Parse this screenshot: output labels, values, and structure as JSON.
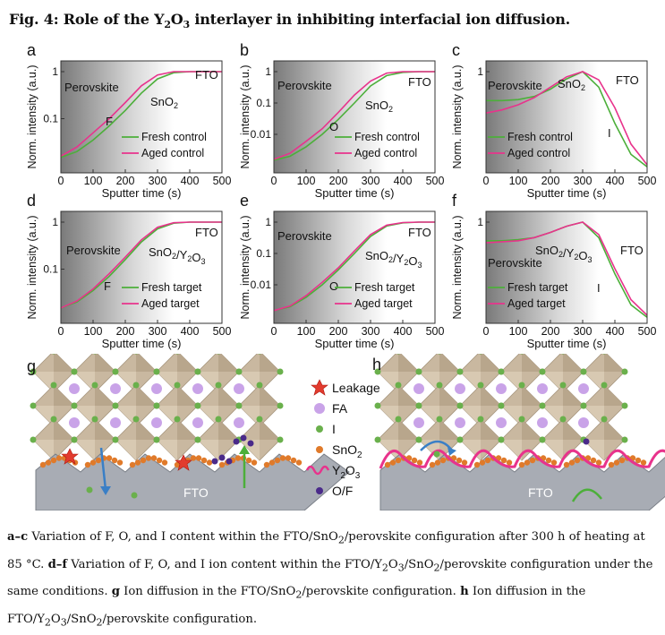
{
  "figure": {
    "title_prefix": "Fig. 4:",
    "title_text_pre": "Role of the Y",
    "title_sub1": "2",
    "title_mid": "O",
    "title_sub2": "3",
    "title_text_post": " interlayer in inhibiting interfacial ion diffusion."
  },
  "colors": {
    "green": "#4caf3a",
    "pink": "#e8338c",
    "gray_dark": "#8a8a8a",
    "fto": "#a8acb4",
    "sno2": "#e07a2a",
    "i_ion": "#6ab04c",
    "fa": "#c9a3e8",
    "of": "#4a2a8a",
    "octa": "#c9b8a0"
  },
  "chart_data": [
    {
      "panel": "a",
      "type": "line",
      "y_scale": "log",
      "ylim": [
        0.01,
        1
      ],
      "xlim": [
        0,
        500
      ],
      "xlabel": "Sputter time (s)",
      "ylabel": "Norm. intensity (a.u.)",
      "yticks": [
        "1",
        "0.1"
      ],
      "xticks": [
        "0",
        "100",
        "200",
        "300",
        "400",
        "500"
      ],
      "regions": [
        "Perovskite",
        "SnO2",
        "FTO"
      ],
      "ion": "F",
      "series": [
        {
          "name": "Fresh control",
          "x": [
            0,
            50,
            100,
            150,
            200,
            250,
            300,
            350,
            400,
            450,
            500
          ],
          "values": [
            0.015,
            0.02,
            0.035,
            0.07,
            0.15,
            0.35,
            0.7,
            0.95,
            1,
            1,
            1
          ]
        },
        {
          "name": "Aged control",
          "x": [
            0,
            50,
            100,
            150,
            200,
            250,
            300,
            350,
            400,
            450,
            500
          ],
          "values": [
            0.016,
            0.025,
            0.05,
            0.1,
            0.22,
            0.5,
            0.85,
            1,
            1,
            1,
            1
          ]
        }
      ]
    },
    {
      "panel": "b",
      "type": "line",
      "y_scale": "log",
      "ylim": [
        0.001,
        1
      ],
      "xlim": [
        0,
        500
      ],
      "xlabel": "Sputter time (s)",
      "ylabel": "Norm. intensity (a.u.)",
      "yticks": [
        "1",
        "0.1",
        "0.01"
      ],
      "xticks": [
        "0",
        "100",
        "200",
        "300",
        "400",
        "500"
      ],
      "regions": [
        "Perovskite",
        "SnO2",
        "FTO"
      ],
      "ion": "O",
      "series": [
        {
          "name": "Fresh control",
          "x": [
            0,
            50,
            100,
            150,
            200,
            250,
            300,
            350,
            400,
            450,
            500
          ],
          "values": [
            0.0015,
            0.002,
            0.004,
            0.01,
            0.03,
            0.1,
            0.35,
            0.75,
            0.95,
            1,
            1
          ]
        },
        {
          "name": "Aged control",
          "x": [
            0,
            50,
            100,
            150,
            200,
            250,
            300,
            350,
            400,
            450,
            500
          ],
          "values": [
            0.0016,
            0.0025,
            0.006,
            0.015,
            0.05,
            0.18,
            0.5,
            0.9,
            1,
            1,
            1
          ]
        }
      ]
    },
    {
      "panel": "c",
      "type": "line",
      "y_scale": "linear",
      "xlim": [
        0,
        500
      ],
      "xlabel": "Sputter time (s)",
      "ylabel": "Norm. intensity (a.u.)",
      "yticks": [
        "1"
      ],
      "xticks": [
        "0",
        "100",
        "200",
        "300",
        "400",
        "500"
      ],
      "regions": [
        "Perovskite",
        "SnO2",
        "FTO"
      ],
      "ion": "I",
      "series": [
        {
          "name": "Fresh control",
          "x": [
            0,
            50,
            100,
            150,
            200,
            250,
            300,
            350,
            400,
            450,
            500
          ],
          "values": [
            0.72,
            0.72,
            0.73,
            0.76,
            0.83,
            0.93,
            1,
            0.85,
            0.5,
            0.2,
            0.08
          ]
        },
        {
          "name": "Aged control",
          "x": [
            0,
            50,
            100,
            150,
            200,
            250,
            300,
            350,
            400,
            450,
            500
          ],
          "values": [
            0.6,
            0.63,
            0.68,
            0.75,
            0.85,
            0.95,
            1,
            0.92,
            0.65,
            0.3,
            0.1
          ]
        }
      ]
    },
    {
      "panel": "d",
      "type": "line",
      "y_scale": "log",
      "ylim": [
        0.01,
        1
      ],
      "xlim": [
        0,
        500
      ],
      "xlabel": "Sputter time (s)",
      "ylabel": "Norm. intensity (a.u.)",
      "yticks": [
        "1",
        "0.1"
      ],
      "xticks": [
        "0",
        "100",
        "200",
        "300",
        "400",
        "500"
      ],
      "regions": [
        "Perovskite",
        "SnO2/Y2O3",
        "FTO"
      ],
      "ion": "F",
      "series": [
        {
          "name": "Fresh target",
          "x": [
            0,
            50,
            100,
            150,
            200,
            250,
            300,
            350,
            400,
            450,
            500
          ],
          "values": [
            0.015,
            0.02,
            0.035,
            0.07,
            0.16,
            0.38,
            0.72,
            0.95,
            1,
            1,
            1
          ]
        },
        {
          "name": "Aged target",
          "x": [
            0,
            50,
            100,
            150,
            200,
            250,
            300,
            350,
            400,
            450,
            500
          ],
          "values": [
            0.015,
            0.021,
            0.038,
            0.08,
            0.18,
            0.42,
            0.78,
            0.97,
            1,
            1,
            1
          ]
        }
      ]
    },
    {
      "panel": "e",
      "type": "line",
      "y_scale": "log",
      "ylim": [
        0.001,
        1
      ],
      "xlim": [
        0,
        500
      ],
      "xlabel": "Sputter time (s)",
      "ylabel": "Norm. intensity (a.u.)",
      "yticks": [
        "1",
        "0.1",
        "0.01"
      ],
      "xticks": [
        "0",
        "100",
        "200",
        "300",
        "400",
        "500"
      ],
      "regions": [
        "Perovskite",
        "SnO2/Y2O3",
        "FTO"
      ],
      "ion": "O",
      "series": [
        {
          "name": "Fresh target",
          "x": [
            0,
            50,
            100,
            150,
            200,
            250,
            300,
            350,
            400,
            450,
            500
          ],
          "values": [
            0.0015,
            0.002,
            0.004,
            0.01,
            0.03,
            0.1,
            0.35,
            0.75,
            0.95,
            1,
            1
          ]
        },
        {
          "name": "Aged target",
          "x": [
            0,
            50,
            100,
            150,
            200,
            250,
            300,
            350,
            400,
            450,
            500
          ],
          "values": [
            0.0015,
            0.0021,
            0.0045,
            0.012,
            0.035,
            0.12,
            0.4,
            0.8,
            0.97,
            1,
            1
          ]
        }
      ]
    },
    {
      "panel": "f",
      "type": "line",
      "y_scale": "linear",
      "xlim": [
        0,
        500
      ],
      "xlabel": "Sputter time (s)",
      "ylabel": "Norm. intensity (a.u.)",
      "yticks": [
        "1"
      ],
      "xticks": [
        "0",
        "100",
        "200",
        "300",
        "400",
        "500"
      ],
      "regions": [
        "Perovskite",
        "SnO2/Y2O3",
        "FTO"
      ],
      "ion": "I",
      "series": [
        {
          "name": "Fresh target",
          "x": [
            0,
            50,
            100,
            150,
            200,
            250,
            300,
            350,
            400,
            450,
            500
          ],
          "values": [
            0.82,
            0.82,
            0.83,
            0.85,
            0.9,
            0.96,
            1,
            0.85,
            0.5,
            0.2,
            0.08
          ]
        },
        {
          "name": "Aged target",
          "x": [
            0,
            50,
            100,
            150,
            200,
            250,
            300,
            350,
            400,
            450,
            500
          ],
          "values": [
            0.8,
            0.81,
            0.82,
            0.85,
            0.9,
            0.96,
            1,
            0.88,
            0.55,
            0.25,
            0.1
          ]
        }
      ]
    }
  ],
  "schematic": {
    "label_g": "g",
    "label_h": "h",
    "fto_label": "FTO",
    "legend": [
      {
        "key": "leakage",
        "label": "Leakage"
      },
      {
        "key": "fa",
        "label": "FA"
      },
      {
        "key": "i",
        "label": "I"
      },
      {
        "key": "sno2",
        "label_pre": "SnO",
        "label_sub": "2"
      },
      {
        "key": "y2o3",
        "label_pre": "Y",
        "label_sub": "2",
        "label_mid": "O",
        "label_sub2": "3"
      },
      {
        "key": "of",
        "label": "O/F"
      }
    ]
  },
  "caption": {
    "p1_bold": "a–c",
    "p1_text": " Variation of F, O, and I content within the FTO/SnO",
    "p1_sub": "2",
    "p1_text2": "/perovskite configuration after 300 h of heating at 85 °C. ",
    "p2_bold": "d–f",
    "p2_text": " Variation of F, O, and I ion content within the FTO/Y",
    "p2_sub1": "2",
    "p2_mid": "O",
    "p2_sub2": "3",
    "p2_mid2": "/SnO",
    "p2_sub3": "2",
    "p2_text2": "/perovskite configuration under the same conditions. ",
    "p3_bold": "g",
    "p3_text": " Ion diffusion in the FTO/SnO",
    "p3_sub": "2",
    "p3_text2": "/perovskite configuration. ",
    "p4_bold": "h",
    "p4_text": " Ion diffusion in the FTO/Y",
    "p4_sub1": "2",
    "p4_mid": "O",
    "p4_sub2": "3",
    "p4_mid2": "/SnO",
    "p4_sub3": "2",
    "p4_text2": "/perovskite configuration."
  }
}
